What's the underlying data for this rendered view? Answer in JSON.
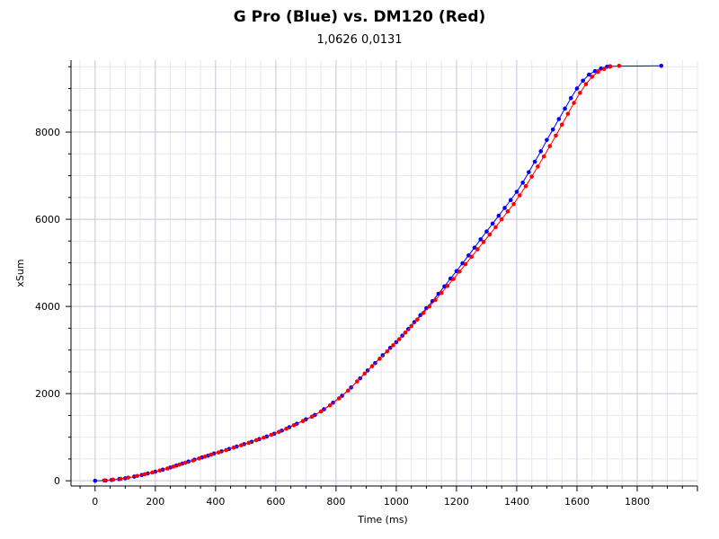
{
  "chart_data": {
    "type": "scatter",
    "title": "G Pro (Blue) vs. DM120 (Red)",
    "subtitle": "1,0626 0,0131",
    "xlabel": "Time (ms)",
    "ylabel": "xSum",
    "xlim": [
      -80,
      2000
    ],
    "ylim": [
      -120,
      9650
    ],
    "xticks": [
      0,
      200,
      400,
      600,
      800,
      1000,
      1200,
      1400,
      1600,
      1800
    ],
    "yticks": [
      0,
      2000,
      4000,
      6000,
      8000
    ],
    "grid": true,
    "series": [
      {
        "color": "#0000ff",
        "points": [
          [
            0,
            0
          ],
          [
            35,
            6
          ],
          [
            55,
            19
          ],
          [
            80,
            38
          ],
          [
            100,
            58
          ],
          [
            130,
            95
          ],
          [
            155,
            132
          ],
          [
            175,
            168
          ],
          [
            200,
            210
          ],
          [
            225,
            255
          ],
          [
            250,
            305
          ],
          [
            270,
            350
          ],
          [
            290,
            395
          ],
          [
            310,
            440
          ],
          [
            330,
            485
          ],
          [
            355,
            535
          ],
          [
            375,
            575
          ],
          [
            395,
            625
          ],
          [
            420,
            675
          ],
          [
            445,
            730
          ],
          [
            470,
            785
          ],
          [
            495,
            840
          ],
          [
            520,
            895
          ],
          [
            545,
            955
          ],
          [
            570,
            1015
          ],
          [
            595,
            1080
          ],
          [
            620,
            1150
          ],
          [
            645,
            1230
          ],
          [
            670,
            1310
          ],
          [
            700,
            1410
          ],
          [
            730,
            1510
          ],
          [
            760,
            1640
          ],
          [
            790,
            1790
          ],
          [
            820,
            1950
          ],
          [
            850,
            2140
          ],
          [
            880,
            2350
          ],
          [
            905,
            2530
          ],
          [
            930,
            2700
          ],
          [
            955,
            2880
          ],
          [
            980,
            3050
          ],
          [
            1000,
            3180
          ],
          [
            1020,
            3330
          ],
          [
            1040,
            3480
          ],
          [
            1060,
            3640
          ],
          [
            1080,
            3800
          ],
          [
            1100,
            3960
          ],
          [
            1120,
            4120
          ],
          [
            1140,
            4290
          ],
          [
            1160,
            4460
          ],
          [
            1180,
            4640
          ],
          [
            1200,
            4810
          ],
          [
            1220,
            4990
          ],
          [
            1240,
            5170
          ],
          [
            1260,
            5350
          ],
          [
            1280,
            5540
          ],
          [
            1300,
            5720
          ],
          [
            1320,
            5900
          ],
          [
            1340,
            6080
          ],
          [
            1360,
            6260
          ],
          [
            1380,
            6440
          ],
          [
            1400,
            6630
          ],
          [
            1420,
            6840
          ],
          [
            1440,
            7080
          ],
          [
            1460,
            7320
          ],
          [
            1480,
            7560
          ],
          [
            1500,
            7820
          ],
          [
            1520,
            8060
          ],
          [
            1540,
            8300
          ],
          [
            1560,
            8540
          ],
          [
            1580,
            8780
          ],
          [
            1600,
            9000
          ],
          [
            1620,
            9180
          ],
          [
            1640,
            9320
          ],
          [
            1660,
            9400
          ],
          [
            1680,
            9460
          ],
          [
            1700,
            9500
          ],
          [
            1710,
            9510
          ],
          [
            1880,
            9520
          ]
        ]
      },
      {
        "color": "#ff0000",
        "points": [
          [
            30,
            8
          ],
          [
            60,
            25
          ],
          [
            85,
            45
          ],
          [
            110,
            72
          ],
          [
            140,
            112
          ],
          [
            165,
            150
          ],
          [
            190,
            190
          ],
          [
            215,
            235
          ],
          [
            240,
            280
          ],
          [
            260,
            325
          ],
          [
            280,
            370
          ],
          [
            300,
            415
          ],
          [
            325,
            465
          ],
          [
            345,
            510
          ],
          [
            365,
            555
          ],
          [
            385,
            600
          ],
          [
            410,
            650
          ],
          [
            435,
            705
          ],
          [
            460,
            760
          ],
          [
            485,
            815
          ],
          [
            510,
            870
          ],
          [
            535,
            930
          ],
          [
            560,
            990
          ],
          [
            585,
            1055
          ],
          [
            610,
            1120
          ],
          [
            635,
            1195
          ],
          [
            660,
            1275
          ],
          [
            690,
            1370
          ],
          [
            720,
            1470
          ],
          [
            750,
            1590
          ],
          [
            780,
            1730
          ],
          [
            810,
            1890
          ],
          [
            840,
            2070
          ],
          [
            870,
            2280
          ],
          [
            895,
            2460
          ],
          [
            920,
            2630
          ],
          [
            945,
            2800
          ],
          [
            970,
            2970
          ],
          [
            990,
            3110
          ],
          [
            1010,
            3250
          ],
          [
            1030,
            3400
          ],
          [
            1050,
            3550
          ],
          [
            1070,
            3700
          ],
          [
            1090,
            3850
          ],
          [
            1110,
            4000
          ],
          [
            1130,
            4150
          ],
          [
            1150,
            4310
          ],
          [
            1170,
            4470
          ],
          [
            1190,
            4630
          ],
          [
            1210,
            4800
          ],
          [
            1230,
            4970
          ],
          [
            1250,
            5140
          ],
          [
            1270,
            5310
          ],
          [
            1290,
            5480
          ],
          [
            1310,
            5650
          ],
          [
            1330,
            5820
          ],
          [
            1350,
            6000
          ],
          [
            1370,
            6180
          ],
          [
            1390,
            6350
          ],
          [
            1410,
            6550
          ],
          [
            1430,
            6760
          ],
          [
            1450,
            6980
          ],
          [
            1470,
            7210
          ],
          [
            1490,
            7440
          ],
          [
            1510,
            7680
          ],
          [
            1530,
            7920
          ],
          [
            1550,
            8170
          ],
          [
            1570,
            8420
          ],
          [
            1590,
            8670
          ],
          [
            1610,
            8900
          ],
          [
            1630,
            9100
          ],
          [
            1650,
            9270
          ],
          [
            1670,
            9380
          ],
          [
            1690,
            9450
          ],
          [
            1710,
            9500
          ],
          [
            1740,
            9520
          ]
        ]
      }
    ]
  }
}
